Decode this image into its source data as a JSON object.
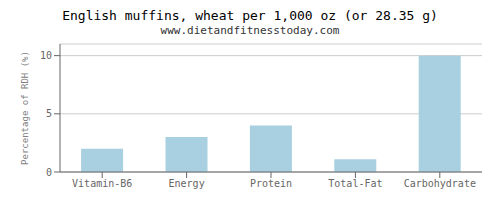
{
  "chart_data": {
    "type": "bar",
    "title": "English muffins, wheat per 1,000 oz (or 28.35 g)",
    "subtitle": "www.dietandfitnesstoday.com",
    "ylabel": "Percentage of RDH (%)",
    "categories": [
      "Vitamin-B6",
      "Energy",
      "Protein",
      "Total-Fat",
      "Carbohydrate"
    ],
    "values": [
      2.0,
      3.0,
      4.0,
      1.1,
      10.0
    ],
    "color": "#a8d0e0",
    "ylim": [
      0,
      11
    ],
    "yticks": [
      0,
      5,
      10
    ],
    "grid": true
  }
}
